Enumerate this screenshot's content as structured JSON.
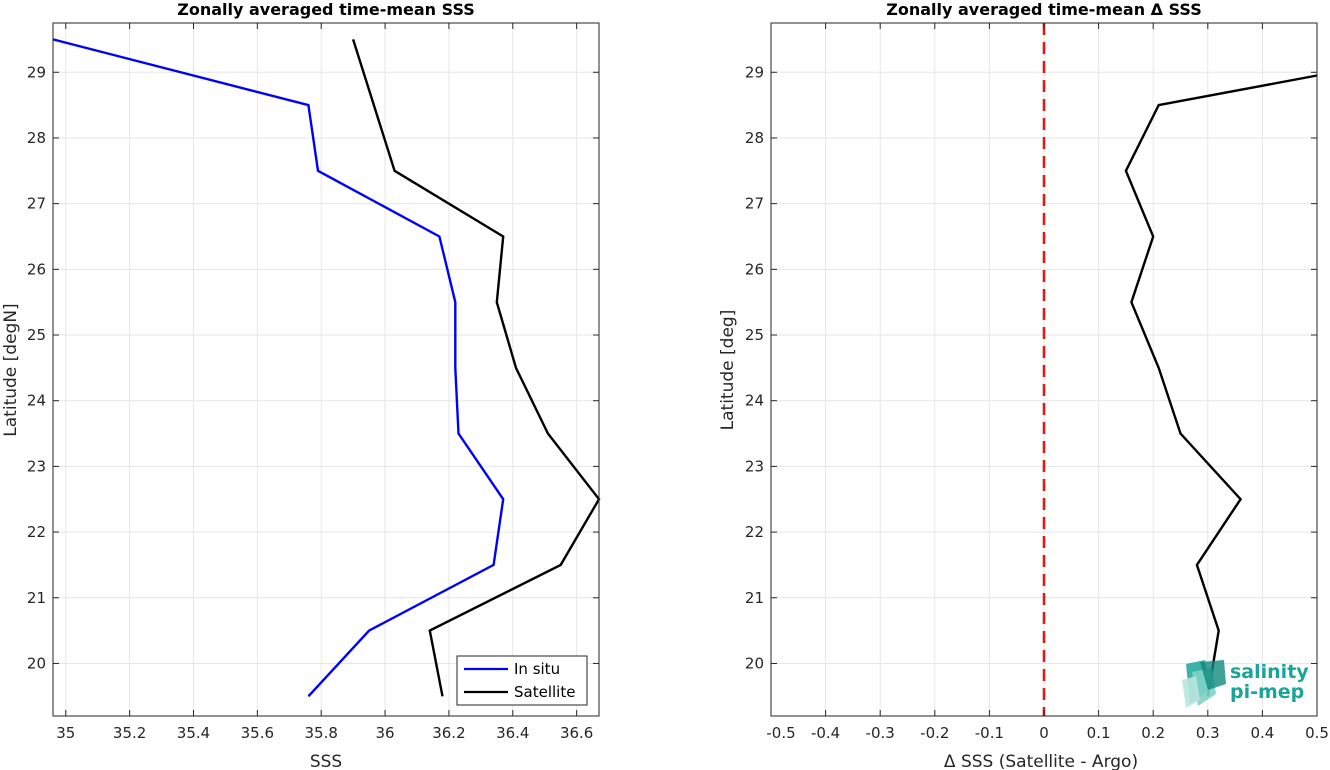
{
  "chart_data": [
    {
      "type": "line",
      "title": "Zonally averaged time-mean SSS",
      "xlabel": "SSS",
      "ylabel": "Latitude [degN]",
      "xlim": [
        34.96,
        36.67
      ],
      "ylim": [
        19.2,
        29.75
      ],
      "xticks": [
        35,
        35.2,
        35.4,
        35.6,
        35.8,
        36,
        36.2,
        36.4,
        36.6
      ],
      "xtick_labels": [
        "35",
        "35.2",
        "35.4",
        "35.6",
        "35.8",
        "36",
        "36.2",
        "36.4",
        "36.6"
      ],
      "yticks": [
        20,
        21,
        22,
        23,
        24,
        25,
        26,
        27,
        28,
        29
      ],
      "ytick_labels": [
        "20",
        "21",
        "22",
        "23",
        "24",
        "25",
        "26",
        "27",
        "28",
        "29"
      ],
      "grid": true,
      "legend_position": "bottom-right",
      "series": [
        {
          "name": "In situ",
          "color": "#0000ff",
          "points": [
            {
              "x": 34.96,
              "y": 29.5
            },
            {
              "x": 35.76,
              "y": 28.5
            },
            {
              "x": 35.79,
              "y": 27.5
            },
            {
              "x": 36.17,
              "y": 26.5
            },
            {
              "x": 36.22,
              "y": 25.5
            },
            {
              "x": 36.22,
              "y": 24.5
            },
            {
              "x": 36.23,
              "y": 23.5
            },
            {
              "x": 36.37,
              "y": 22.5
            },
            {
              "x": 36.34,
              "y": 21.5
            },
            {
              "x": 35.95,
              "y": 20.5
            },
            {
              "x": 35.76,
              "y": 19.5
            }
          ]
        },
        {
          "name": "Satellite",
          "color": "#000000",
          "points": [
            {
              "x": 35.9,
              "y": 29.5
            },
            {
              "x": 36.03,
              "y": 27.5
            },
            {
              "x": 36.37,
              "y": 26.5
            },
            {
              "x": 36.35,
              "y": 25.5
            },
            {
              "x": 36.41,
              "y": 24.5
            },
            {
              "x": 36.51,
              "y": 23.5
            },
            {
              "x": 36.67,
              "y": 22.5
            },
            {
              "x": 36.55,
              "y": 21.5
            },
            {
              "x": 36.14,
              "y": 20.5
            },
            {
              "x": 36.18,
              "y": 19.5
            }
          ]
        }
      ]
    },
    {
      "type": "line",
      "title": "Zonally averaged time-mean Δ SSS",
      "xlabel": "Δ SSS (Satellite - Argo)",
      "ylabel": "Latitude [deg]",
      "xlim": [
        -0.5,
        0.5
      ],
      "ylim": [
        19.2,
        29.75
      ],
      "xticks": [
        -0.5,
        -0.4,
        -0.3,
        -0.2,
        -0.1,
        0,
        0.1,
        0.2,
        0.3,
        0.4,
        0.5
      ],
      "xtick_labels": [
        "-0.5",
        "-0.4",
        "-0.3",
        "-0.2",
        "-0.1",
        "0",
        "0.1",
        "0.2",
        "0.3",
        "0.4",
        "0.5"
      ],
      "yticks": [
        20,
        21,
        22,
        23,
        24,
        25,
        26,
        27,
        28,
        29
      ],
      "ytick_labels": [
        "20",
        "21",
        "22",
        "23",
        "24",
        "25",
        "26",
        "27",
        "28",
        "29"
      ],
      "grid": true,
      "reference_line": {
        "x": 0,
        "color": "#e01a1a",
        "style": "dashed"
      },
      "series": [
        {
          "color": "#000000",
          "points": [
            {
              "x": 0.5,
              "y": 28.95
            },
            {
              "x": 0.21,
              "y": 28.5
            },
            {
              "x": 0.15,
              "y": 27.5
            },
            {
              "x": 0.2,
              "y": 26.5
            },
            {
              "x": 0.16,
              "y": 25.5
            },
            {
              "x": 0.21,
              "y": 24.5
            },
            {
              "x": 0.25,
              "y": 23.5
            },
            {
              "x": 0.36,
              "y": 22.5
            },
            {
              "x": 0.28,
              "y": 21.5
            },
            {
              "x": 0.32,
              "y": 20.5
            },
            {
              "x": 0.3,
              "y": 19.5
            }
          ]
        }
      ]
    }
  ],
  "logo": {
    "line1": "salinity",
    "line2": "pi-mep",
    "color": "#1aa59a"
  }
}
